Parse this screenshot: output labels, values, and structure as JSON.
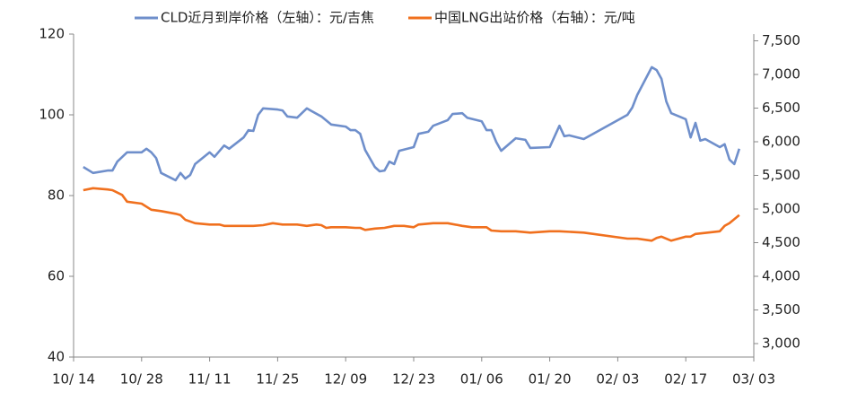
{
  "chart_data": {
    "type": "line",
    "xlim": [
      0,
      140
    ],
    "xticks": [
      {
        "value": 0,
        "label": "10/ 14"
      },
      {
        "value": 14,
        "label": "10/ 28"
      },
      {
        "value": 28,
        "label": "11/ 11"
      },
      {
        "value": 42,
        "label": "11/ 25"
      },
      {
        "value": 56,
        "label": "12/ 09"
      },
      {
        "value": 70,
        "label": "12/ 23"
      },
      {
        "value": 84,
        "label": "01/ 06"
      },
      {
        "value": 98,
        "label": "01/ 20"
      },
      {
        "value": 112,
        "label": "02/ 03"
      },
      {
        "value": 126,
        "label": "02/ 17"
      },
      {
        "value": 140,
        "label": "03/ 03"
      }
    ],
    "ylim": [
      40,
      120
    ],
    "yticks": [
      40,
      60,
      80,
      100,
      120
    ],
    "y2lim": [
      2800,
      7600
    ],
    "y2ticks": [
      {
        "value": 3000,
        "label": "3,000"
      },
      {
        "value": 3500,
        "label": "3,500"
      },
      {
        "value": 4000,
        "label": "4,000"
      },
      {
        "value": 4500,
        "label": "4,500"
      },
      {
        "value": 5000,
        "label": "5,000"
      },
      {
        "value": 5500,
        "label": "5,500"
      },
      {
        "value": 6000,
        "label": "6,000"
      },
      {
        "value": 6500,
        "label": "6,500"
      },
      {
        "value": 7000,
        "label": "7,000"
      },
      {
        "value": 7500,
        "label": "7,500"
      }
    ],
    "series": [
      {
        "name": "CLD近月到岸价格（左轴）：元/吉焦",
        "color": "#6f8fcb",
        "axis": "y",
        "x": [
          2,
          4,
          7,
          8,
          9,
          11,
          14,
          15,
          16,
          17,
          18,
          21,
          22,
          23,
          24,
          25,
          28,
          29,
          31,
          32,
          35,
          36,
          37,
          38,
          39,
          42,
          43,
          44,
          46,
          48,
          49,
          51,
          53,
          56,
          57,
          58,
          59,
          60,
          62,
          63,
          64,
          65,
          66,
          67,
          70,
          71,
          73,
          74,
          77,
          78,
          80,
          81,
          84,
          85,
          86,
          87,
          88,
          91,
          92,
          93,
          94,
          98,
          100,
          101,
          102,
          105,
          114,
          115,
          116,
          119,
          120,
          121,
          122,
          123,
          126,
          127,
          128,
          129,
          130,
          133,
          134,
          135,
          136,
          137
        ],
        "values": [
          87.1,
          85.6,
          86.2,
          86.2,
          88.4,
          90.7,
          90.7,
          91.6,
          90.7,
          89.3,
          85.6,
          83.8,
          85.6,
          84.2,
          85.1,
          87.8,
          90.7,
          89.6,
          92.4,
          91.6,
          94.4,
          96.2,
          96.0,
          100.0,
          101.6,
          101.3,
          101.1,
          99.6,
          99.3,
          101.6,
          100.9,
          99.6,
          97.6,
          97.1,
          96.2,
          96.2,
          95.3,
          91.3,
          87.1,
          86.0,
          86.2,
          88.4,
          87.8,
          91.1,
          92.0,
          95.3,
          95.8,
          97.3,
          98.7,
          100.2,
          100.4,
          99.3,
          98.4,
          96.2,
          96.2,
          93.3,
          91.1,
          94.2,
          94.0,
          93.8,
          91.8,
          92.0,
          97.3,
          94.7,
          94.9,
          94.0,
          100.0,
          101.8,
          104.9,
          111.8,
          111.1,
          108.9,
          103.3,
          100.4,
          98.9,
          94.4,
          98.0,
          93.6,
          94.0,
          92.0,
          92.7,
          88.9,
          87.8,
          91.6
        ]
      },
      {
        "name": "中国LNG出站价格（右轴）：元/吨",
        "color": "#f0701e",
        "axis": "y2",
        "x": [
          2,
          4,
          7,
          8,
          10,
          11,
          14,
          16,
          18,
          21,
          22,
          23,
          25,
          28,
          30,
          31,
          37,
          39,
          41,
          43,
          46,
          48,
          50,
          51,
          52,
          53,
          56,
          58,
          59,
          60,
          62,
          64,
          66,
          68,
          70,
          71,
          74,
          77,
          80,
          82,
          85,
          86,
          88,
          91,
          94,
          98,
          100,
          105,
          114,
          115,
          116,
          119,
          120,
          121,
          123,
          126,
          127,
          128,
          133,
          134,
          135,
          137
        ],
        "values": [
          5280,
          5310,
          5290,
          5280,
          5210,
          5110,
          5080,
          4990,
          4970,
          4930,
          4910,
          4840,
          4790,
          4770,
          4770,
          4750,
          4750,
          4760,
          4790,
          4770,
          4770,
          4750,
          4770,
          4760,
          4720,
          4730,
          4730,
          4720,
          4720,
          4690,
          4710,
          4720,
          4750,
          4750,
          4730,
          4770,
          4790,
          4790,
          4750,
          4730,
          4730,
          4680,
          4670,
          4670,
          4650,
          4670,
          4670,
          4650,
          4560,
          4560,
          4560,
          4530,
          4570,
          4590,
          4530,
          4590,
          4590,
          4630,
          4670,
          4750,
          4790,
          4910
        ]
      }
    ]
  }
}
